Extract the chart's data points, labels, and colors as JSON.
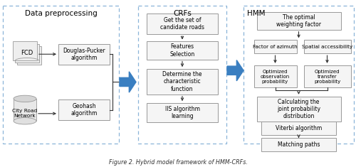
{
  "title": "Figure 2. Hybrid model framework of HMM-CRFs.",
  "bg_color": "#ffffff",
  "box_facecolor": "#f5f5f5",
  "box_edgecolor": "#999999",
  "section_border_color": "#8ab4d8",
  "arrow_color": "#3a7fc1",
  "text_color": "#000000",
  "section1_title": "Data preprocessing",
  "section2_title": "CRFs",
  "section3_title": "HMM",
  "dp_box": "Douglas-Pucker\nalgorithm",
  "geo_box": "Geohash\nalgorithm",
  "fcd_label": "FCD",
  "crn_label": "City Road\nNetwork",
  "crf_boxes": [
    "Get the set of\ncandidate roads",
    "Features\nSelection",
    "Determine the\ncharacteristic\nfunction",
    "IIS algorithm\nlearning"
  ],
  "hmm_top": "The optimal\nweighting factor",
  "hmm_left1": "Factor of azimuth",
  "hmm_right1": "Spatial accessibility",
  "hmm_left2": "Optimized\nobservation\nprobability",
  "hmm_right2": "Optimized\ntransfer\nprobability",
  "hmm_calc": "Calculating the\njoint probability\ndistribution",
  "hmm_viterbi": "Viterbi algorithm",
  "hmm_matching": "Matching paths"
}
